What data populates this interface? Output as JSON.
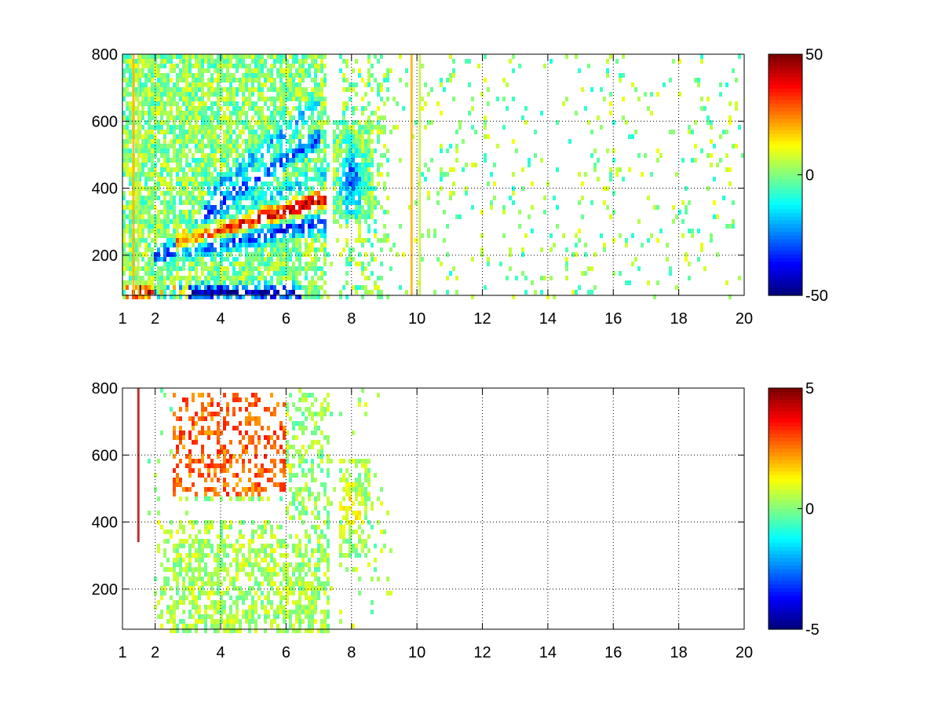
{
  "chart_data": [
    {
      "type": "heatmap",
      "title": "",
      "xlabel": "",
      "ylabel": "",
      "xlim": [
        1,
        20
      ],
      "ylim": [
        80,
        800
      ],
      "x_ticks": [
        1,
        2,
        4,
        6,
        8,
        10,
        12,
        14,
        16,
        18,
        20
      ],
      "y_ticks": [
        200,
        400,
        600,
        800
      ],
      "grid": true,
      "grid_style": "dotted",
      "colormap": "jet",
      "clim": [
        -50,
        50
      ],
      "colorbar_ticks": [
        -50,
        0,
        50
      ],
      "vertical_stripes_x": [
        1.3,
        1.45,
        9.8,
        10.05
      ],
      "features": [
        {
          "kind": "band",
          "x_range": [
            2.0,
            7.2
          ],
          "y_start": 200,
          "y_end": 300,
          "value": -35
        },
        {
          "kind": "band",
          "x_range": [
            2.6,
            7.2
          ],
          "y_start": 230,
          "y_end": 370,
          "value": 40
        },
        {
          "kind": "band",
          "x_range": [
            3.0,
            7.2
          ],
          "y_start": 270,
          "y_end": 440,
          "value": -15
        },
        {
          "kind": "band",
          "x_range": [
            3.4,
            7.0
          ],
          "y_start": 320,
          "y_end": 550,
          "value": -30
        },
        {
          "kind": "band",
          "x_range": [
            3.6,
            7.0
          ],
          "y_start": 380,
          "y_end": 650,
          "value": -18
        },
        {
          "kind": "blob",
          "x_center": 8.0,
          "y_center": 420,
          "value": -28
        },
        {
          "kind": "low_band",
          "y": 90,
          "x_range": [
            2.0,
            6.5
          ],
          "value": -50
        },
        {
          "kind": "low_band",
          "y": 90,
          "x_range": [
            1.1,
            3.0
          ],
          "value": 45
        }
      ]
    },
    {
      "type": "heatmap",
      "title": "",
      "xlabel": "",
      "ylabel": "",
      "xlim": [
        1,
        20
      ],
      "ylim": [
        80,
        800
      ],
      "x_ticks": [
        1,
        2,
        4,
        6,
        8,
        10,
        12,
        14,
        16,
        18,
        20
      ],
      "y_ticks": [
        200,
        400,
        600,
        800
      ],
      "grid": true,
      "grid_style": "dotted",
      "colormap": "jet",
      "clim": [
        -5,
        5
      ],
      "colorbar_ticks": [
        -5,
        0,
        5
      ],
      "vertical_stripes_x": [
        1.45
      ],
      "features": [
        {
          "kind": "region",
          "x_range": [
            2.5,
            6.0
          ],
          "y_range": [
            480,
            780
          ],
          "value": 2.8
        },
        {
          "kind": "region",
          "x_range": [
            1.8,
            7.2
          ],
          "y_range": [
            80,
            400
          ],
          "value": 0.4
        },
        {
          "kind": "blob",
          "x_center": 8.0,
          "y_center": 430,
          "value": 1.6
        },
        {
          "kind": "region",
          "x_range": [
            6.2,
            7.2
          ],
          "y_range": [
            250,
            780
          ],
          "value": 0.2
        }
      ]
    }
  ]
}
